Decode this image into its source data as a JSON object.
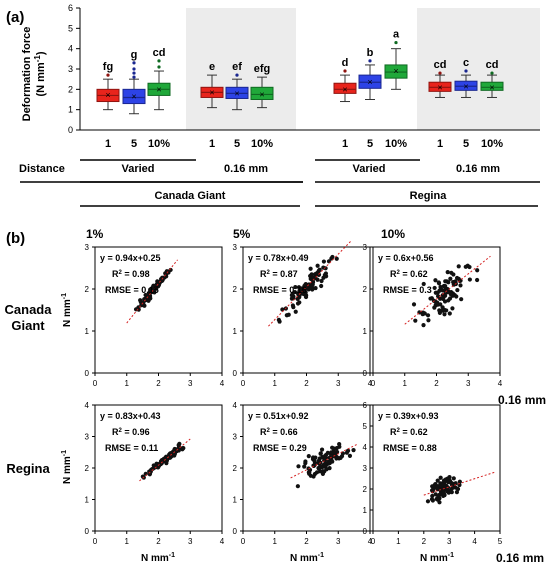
{
  "panel_a": {
    "label": "(a)",
    "ylabel_line1": "Deformation force",
    "ylabel_line2": "(N mm",
    "ylabel_sup": "-1",
    "ylabel_close": ")",
    "row_distance": "Distance",
    "group_labels": [
      "Varied",
      "0.16 mm",
      "Varied",
      "0.16 mm"
    ],
    "cultivars": [
      "Canada Giant",
      "Regina"
    ]
  },
  "panel_b": {
    "label": "(b)",
    "col_titles": [
      "1%",
      "5%",
      "10%"
    ],
    "row_labels": [
      [
        "Canada",
        "Giant"
      ],
      [
        "Regina"
      ]
    ],
    "axis_unit": "N mm",
    "axis_sup": "-1",
    "side_note": "0.16 mm"
  },
  "colors": {
    "red": "#e8241c",
    "blue": "#2d43e6",
    "green": "#20a83a",
    "shade": "#ececec",
    "dot": "#111111",
    "fit": "#d42020"
  },
  "chart_data": [
    {
      "type": "box",
      "title": "",
      "ylabel": "Deformation force (N mm-1)",
      "ylim": [
        0,
        6
      ],
      "yticks": [
        0,
        1,
        2,
        3,
        4,
        5,
        6
      ],
      "categories": [
        "1",
        "5",
        "10%",
        "1",
        "5",
        "10%",
        "1",
        "5",
        "10%",
        "1",
        "5",
        "10%"
      ],
      "groups": [
        {
          "cultivar": "Canada Giant",
          "distance": "Varied",
          "shaded": false
        },
        {
          "cultivar": "Canada Giant",
          "distance": "0.16 mm",
          "shaded": true
        },
        {
          "cultivar": "Regina",
          "distance": "Varied",
          "shaded": false
        },
        {
          "cultivar": "Regina",
          "distance": "0.16 mm",
          "shaded": true
        }
      ],
      "boxes": [
        {
          "color": "red",
          "min": 1.0,
          "q1": 1.4,
          "median": 1.7,
          "mean": 1.72,
          "q3": 2.0,
          "max": 2.5,
          "outliers": [
            2.7
          ],
          "letter": "fg"
        },
        {
          "color": "blue",
          "min": 0.8,
          "q1": 1.3,
          "median": 1.6,
          "mean": 1.65,
          "q3": 2.0,
          "max": 2.5,
          "outliers": [
            2.6,
            2.8,
            3.0,
            3.3
          ],
          "letter": "g"
        },
        {
          "color": "green",
          "min": 1.0,
          "q1": 1.7,
          "median": 2.0,
          "mean": 2.0,
          "q3": 2.3,
          "max": 2.9,
          "outliers": [
            3.1,
            3.4
          ],
          "letter": "cd"
        },
        {
          "color": "red",
          "min": 1.1,
          "q1": 1.6,
          "median": 1.85,
          "mean": 1.85,
          "q3": 2.1,
          "max": 2.7,
          "outliers": [],
          "letter": "e"
        },
        {
          "color": "blue",
          "min": 1.0,
          "q1": 1.55,
          "median": 1.8,
          "mean": 1.8,
          "q3": 2.1,
          "max": 2.5,
          "outliers": [
            2.7
          ],
          "letter": "ef"
        },
        {
          "color": "green",
          "min": 1.1,
          "q1": 1.5,
          "median": 1.75,
          "mean": 1.75,
          "q3": 2.1,
          "max": 2.6,
          "outliers": [],
          "letter": "efg"
        },
        {
          "color": "red",
          "min": 1.4,
          "q1": 1.8,
          "median": 2.0,
          "mean": 2.0,
          "q3": 2.3,
          "max": 2.7,
          "outliers": [
            2.9
          ],
          "letter": "d"
        },
        {
          "color": "blue",
          "min": 1.5,
          "q1": 2.05,
          "median": 2.35,
          "mean": 2.35,
          "q3": 2.7,
          "max": 3.2,
          "outliers": [
            3.4
          ],
          "letter": "b"
        },
        {
          "color": "green",
          "min": 2.0,
          "q1": 2.55,
          "median": 2.85,
          "mean": 2.9,
          "q3": 3.2,
          "max": 4.0,
          "outliers": [
            4.3
          ],
          "letter": "a"
        },
        {
          "color": "red",
          "min": 1.6,
          "q1": 1.9,
          "median": 2.1,
          "mean": 2.1,
          "q3": 2.35,
          "max": 2.7,
          "outliers": [
            2.8
          ],
          "letter": "cd"
        },
        {
          "color": "blue",
          "min": 1.6,
          "q1": 1.95,
          "median": 2.15,
          "mean": 2.15,
          "q3": 2.4,
          "max": 2.7,
          "outliers": [
            2.9
          ],
          "letter": "c"
        },
        {
          "color": "green",
          "min": 1.6,
          "q1": 1.95,
          "median": 2.1,
          "mean": 2.1,
          "q3": 2.35,
          "max": 2.7,
          "outliers": [
            2.8
          ],
          "letter": "cd"
        }
      ]
    },
    {
      "type": "scatter",
      "cultivar": "Canada Giant",
      "column": "1%",
      "xlim": [
        0,
        4
      ],
      "ylim": [
        0,
        3
      ],
      "xticks": [
        0,
        1,
        2,
        3,
        4
      ],
      "yticks": [
        0,
        1,
        2,
        3
      ],
      "equation": "y = 0.94x+0.25",
      "r2": "R",
      "r2_value": "= 0.98",
      "rmse": "RMSE = 0.15",
      "fit": {
        "slope": 0.94,
        "intercept": 0.25,
        "x_range": [
          1.0,
          2.6
        ]
      },
      "points": {
        "n": 90,
        "x_range": [
          1.0,
          2.6
        ],
        "noise": 0.05,
        "seed": 11
      }
    },
    {
      "type": "scatter",
      "cultivar": "Canada Giant",
      "column": "5%",
      "xlim": [
        0,
        4
      ],
      "ylim": [
        0,
        3
      ],
      "xticks": [
        0,
        1,
        2,
        3,
        4
      ],
      "yticks": [
        0,
        1,
        2,
        3
      ],
      "equation": "y = 0.78x+0.49",
      "r2": "R",
      "r2_value": "= 0.87",
      "rmse": "RMSE = 0.16",
      "fit": {
        "slope": 0.78,
        "intercept": 0.49,
        "x_range": [
          0.8,
          3.4
        ]
      },
      "points": {
        "n": 90,
        "x_range": [
          0.8,
          3.3
        ],
        "noise": 0.14,
        "seed": 23
      }
    },
    {
      "type": "scatter",
      "cultivar": "Canada Giant",
      "column": "10%",
      "xlim": [
        0,
        4
      ],
      "ylim": [
        0,
        3
      ],
      "xticks": [
        0,
        1,
        2,
        3,
        4
      ],
      "yticks": [
        0,
        1,
        2,
        3
      ],
      "equation": "y = 0.6x+0.56",
      "r2": "R",
      "r2_value": "= 0.62",
      "rmse": "RMSE = 0.3",
      "fit": {
        "slope": 0.6,
        "intercept": 0.56,
        "x_range": [
          1.0,
          3.7
        ]
      },
      "points": {
        "n": 90,
        "x_range": [
          1.0,
          3.5
        ],
        "noise": 0.25,
        "seed": 37
      }
    },
    {
      "type": "scatter",
      "cultivar": "Regina",
      "column": "1%",
      "xlim": [
        0,
        4
      ],
      "ylim": [
        0,
        4
      ],
      "xticks": [
        0,
        1,
        2,
        3,
        4
      ],
      "yticks": [
        0,
        1,
        2,
        3,
        4
      ],
      "equation": "y = 0.83x+0.43",
      "r2": "R",
      "r2_value": "= 0.96",
      "rmse": "RMSE = 0.11",
      "fit": {
        "slope": 0.83,
        "intercept": 0.43,
        "x_range": [
          1.4,
          3.0
        ]
      },
      "points": {
        "n": 90,
        "x_range": [
          1.4,
          3.0
        ],
        "noise": 0.06,
        "seed": 41
      }
    },
    {
      "type": "scatter",
      "cultivar": "Regina",
      "column": "5%",
      "xlim": [
        0,
        4
      ],
      "ylim": [
        0,
        4
      ],
      "xticks": [
        0,
        1,
        2,
        3,
        4
      ],
      "yticks": [
        0,
        1,
        2,
        3,
        4
      ],
      "equation": "y = 0.51x+0.92",
      "r2": "R",
      "r2_value": "= 0.66",
      "rmse": "RMSE = 0.29",
      "fit": {
        "slope": 0.51,
        "intercept": 0.92,
        "x_range": [
          1.5,
          3.6
        ]
      },
      "points": {
        "n": 90,
        "x_range": [
          1.5,
          3.6
        ],
        "noise": 0.2,
        "seed": 53
      }
    },
    {
      "type": "scatter",
      "cultivar": "Regina",
      "column": "10%",
      "xlim": [
        0,
        5
      ],
      "ylim": [
        0,
        6
      ],
      "xticks": [
        0,
        1,
        2,
        3,
        4,
        5
      ],
      "yticks": [
        0,
        1,
        2,
        3,
        4,
        5,
        6
      ],
      "equation": "y = 0.39x+0.93",
      "r2": "R",
      "r2_value": "= 0.62",
      "rmse": "RMSE = 0.88",
      "fit": {
        "slope": 0.39,
        "intercept": 0.93,
        "x_range": [
          2.0,
          4.8
        ]
      },
      "points": {
        "n": 90,
        "x_range": [
          2.0,
          3.6
        ],
        "noise": 0.22,
        "seed": 67
      }
    }
  ]
}
